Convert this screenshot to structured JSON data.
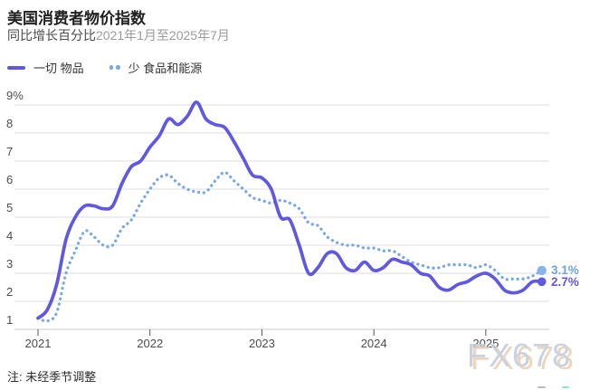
{
  "header": {
    "title": "美国消费者物价指数",
    "subtitle": "同比增长百分比",
    "subtitle_range": "2021年1月至2025年7月"
  },
  "legend": {
    "items": [
      {
        "label": "一切 物品",
        "style": "solid",
        "color": "#6158e1"
      },
      {
        "label": "少 食品和能源",
        "style": "dotted",
        "color": "#78a9e2"
      }
    ]
  },
  "chart_data": {
    "type": "line",
    "title": "美国消费者物价指数",
    "subtitle": "同比增长百分比 2021年1月至2025年7月",
    "unit": "%",
    "frequency": "monthly",
    "x_start": "2021-01",
    "x_end": "2025-07",
    "x_tick_labels": [
      "2021",
      "2022",
      "2023",
      "2024",
      "2025"
    ],
    "y_ticks": [
      1,
      2,
      3,
      4,
      5,
      6,
      7,
      8,
      9
    ],
    "y_tick_top_label": "9%",
    "ylim": [
      1,
      9
    ],
    "grid": "horizontal",
    "legend_position": "top-left",
    "series": [
      {
        "name": "一切 物品",
        "style": "solid",
        "color": "#6158e1",
        "end_label": "2.7%",
        "values": [
          1.4,
          1.7,
          2.6,
          4.2,
          5.0,
          5.4,
          5.4,
          5.3,
          5.4,
          6.2,
          6.8,
          7.0,
          7.5,
          7.9,
          8.5,
          8.3,
          8.6,
          9.1,
          8.5,
          8.3,
          8.2,
          7.7,
          7.1,
          6.5,
          6.4,
          6.0,
          5.0,
          4.9,
          4.0,
          3.0,
          3.2,
          3.7,
          3.7,
          3.2,
          3.1,
          3.4,
          3.1,
          3.2,
          3.5,
          3.4,
          3.3,
          3.0,
          2.9,
          2.5,
          2.4,
          2.6,
          2.7,
          2.9,
          3.0,
          2.8,
          2.4,
          2.3,
          2.4,
          2.7,
          2.7
        ]
      },
      {
        "name": "少 食品和能源",
        "style": "dotted",
        "color": "#78a9e2",
        "end_label": "3.1%",
        "values": [
          1.4,
          1.3,
          1.6,
          3.0,
          3.8,
          4.5,
          4.3,
          4.0,
          4.0,
          4.6,
          4.9,
          5.5,
          6.0,
          6.4,
          6.5,
          6.2,
          6.0,
          5.9,
          5.9,
          6.3,
          6.6,
          6.3,
          6.0,
          5.7,
          5.6,
          5.5,
          5.6,
          5.5,
          5.3,
          4.8,
          4.7,
          4.3,
          4.1,
          4.0,
          4.0,
          3.9,
          3.9,
          3.8,
          3.8,
          3.6,
          3.4,
          3.3,
          3.2,
          3.2,
          3.3,
          3.3,
          3.3,
          3.2,
          3.3,
          3.1,
          2.8,
          2.8,
          2.8,
          2.9,
          3.1
        ]
      }
    ]
  },
  "note": "注: 未经季节调整",
  "watermark": "FX678"
}
